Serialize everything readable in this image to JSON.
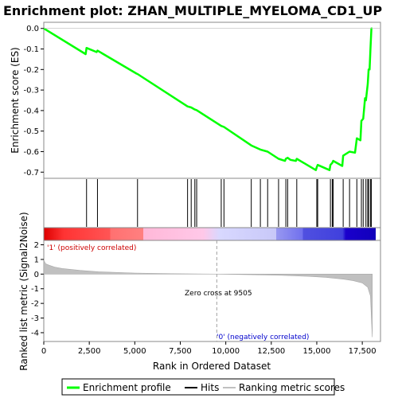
{
  "chart_data": {
    "type": "line",
    "title": "Enrichment plot: ZHAN_MULTIPLE_MYELOMA_CD1_UP",
    "xlabel": "Rank in Ordered Dataset",
    "xlim": [
      0,
      18500
    ],
    "x_ticks": [
      0,
      2500,
      5000,
      7500,
      10000,
      12500,
      15000,
      17500
    ],
    "x_tick_labels": [
      "0",
      "2,500",
      "5,000",
      "7,500",
      "10,000",
      "12,500",
      "15,000",
      "17,500"
    ],
    "es_panel": {
      "ylabel": "Enrichment score (ES)",
      "ylim": [
        -0.73,
        0.03
      ],
      "y_ticks": [
        0.0,
        -0.1,
        -0.2,
        -0.3,
        -0.4,
        -0.5,
        -0.6,
        -0.7
      ],
      "y_tick_labels": [
        "0.0",
        "-0.1",
        "-0.2",
        "-0.3",
        "-0.4",
        "-0.5",
        "-0.6",
        "-0.7"
      ],
      "series": [
        {
          "name": "Enrichment profile",
          "color": "#00ff00",
          "x": [
            0,
            2300,
            2350,
            2900,
            2950,
            5100,
            5150,
            7900,
            8100,
            8300,
            8400,
            9750,
            9900,
            11400,
            11900,
            12300,
            12900,
            13250,
            13300,
            13400,
            13550,
            13850,
            13900,
            14950,
            15000,
            15050,
            15700,
            15750,
            15850,
            15900,
            16400,
            16450,
            16800,
            17100,
            17200,
            17400,
            17450,
            17550,
            17650,
            17700,
            17800,
            17850,
            17900,
            17950,
            18000,
            18050
          ],
          "y": [
            0.0,
            -0.125,
            -0.095,
            -0.115,
            -0.108,
            -0.22,
            -0.222,
            -0.38,
            -0.385,
            -0.395,
            -0.398,
            -0.475,
            -0.48,
            -0.57,
            -0.59,
            -0.6,
            -0.635,
            -0.645,
            -0.635,
            -0.63,
            -0.64,
            -0.645,
            -0.635,
            -0.69,
            -0.675,
            -0.665,
            -0.69,
            -0.665,
            -0.655,
            -0.645,
            -0.67,
            -0.62,
            -0.6,
            -0.605,
            -0.535,
            -0.545,
            -0.45,
            -0.44,
            -0.34,
            -0.35,
            -0.27,
            -0.2,
            -0.2,
            -0.1,
            0.0,
            0.0
          ]
        }
      ]
    },
    "hits_panel": {
      "series_name": "Hits",
      "hit_ranks": [
        2350,
        2950,
        5150,
        7900,
        8100,
        8300,
        8400,
        9750,
        9900,
        11400,
        11900,
        12300,
        12900,
        13300,
        13400,
        13900,
        15000,
        15050,
        15750,
        15850,
        15900,
        16450,
        16800,
        17200,
        17450,
        17550,
        17700,
        17800,
        17850,
        17950,
        18000
      ]
    },
    "ranked_metric_panel": {
      "series_name": "Ranking metric scores",
      "ylabel": "Ranked list metric (Signal2Noise)",
      "ylim": [
        -4.6,
        2.3
      ],
      "y_ticks": [
        2,
        1,
        0,
        -1,
        -2,
        -3,
        -4
      ],
      "y_tick_labels": [
        "2",
        "1",
        "0",
        "-1",
        "-2",
        "-3",
        "-4"
      ],
      "x": [
        0,
        100,
        300,
        600,
        1000,
        2000,
        3000,
        5000,
        7000,
        9505,
        11000,
        13000,
        14500,
        15500,
        16500,
        17000,
        17500,
        17800,
        17950,
        18000,
        18050
      ],
      "y": [
        0.95,
        0.7,
        0.6,
        0.48,
        0.38,
        0.25,
        0.16,
        0.07,
        0.03,
        0.0,
        -0.03,
        -0.08,
        -0.15,
        -0.22,
        -0.35,
        -0.45,
        -0.6,
        -0.9,
        -1.5,
        -3.0,
        -4.3
      ],
      "zero_cross_rank": 9505,
      "zero_cross_label": "Zero cross at 9505",
      "positive_label": "'1' (positively correlated)",
      "negative_label": "'0' (negatively correlated)"
    },
    "legend": {
      "placement": "bottom",
      "items": [
        "Enrichment profile",
        "Hits",
        "Ranking metric scores"
      ]
    }
  },
  "colors": {
    "profile": "#00ff00",
    "hits": "#000000",
    "metric_fill": "#c0c0c0",
    "zero_line": "#a0a0a0",
    "pos_label": "#cc0000",
    "neg_label": "#0000cc"
  }
}
